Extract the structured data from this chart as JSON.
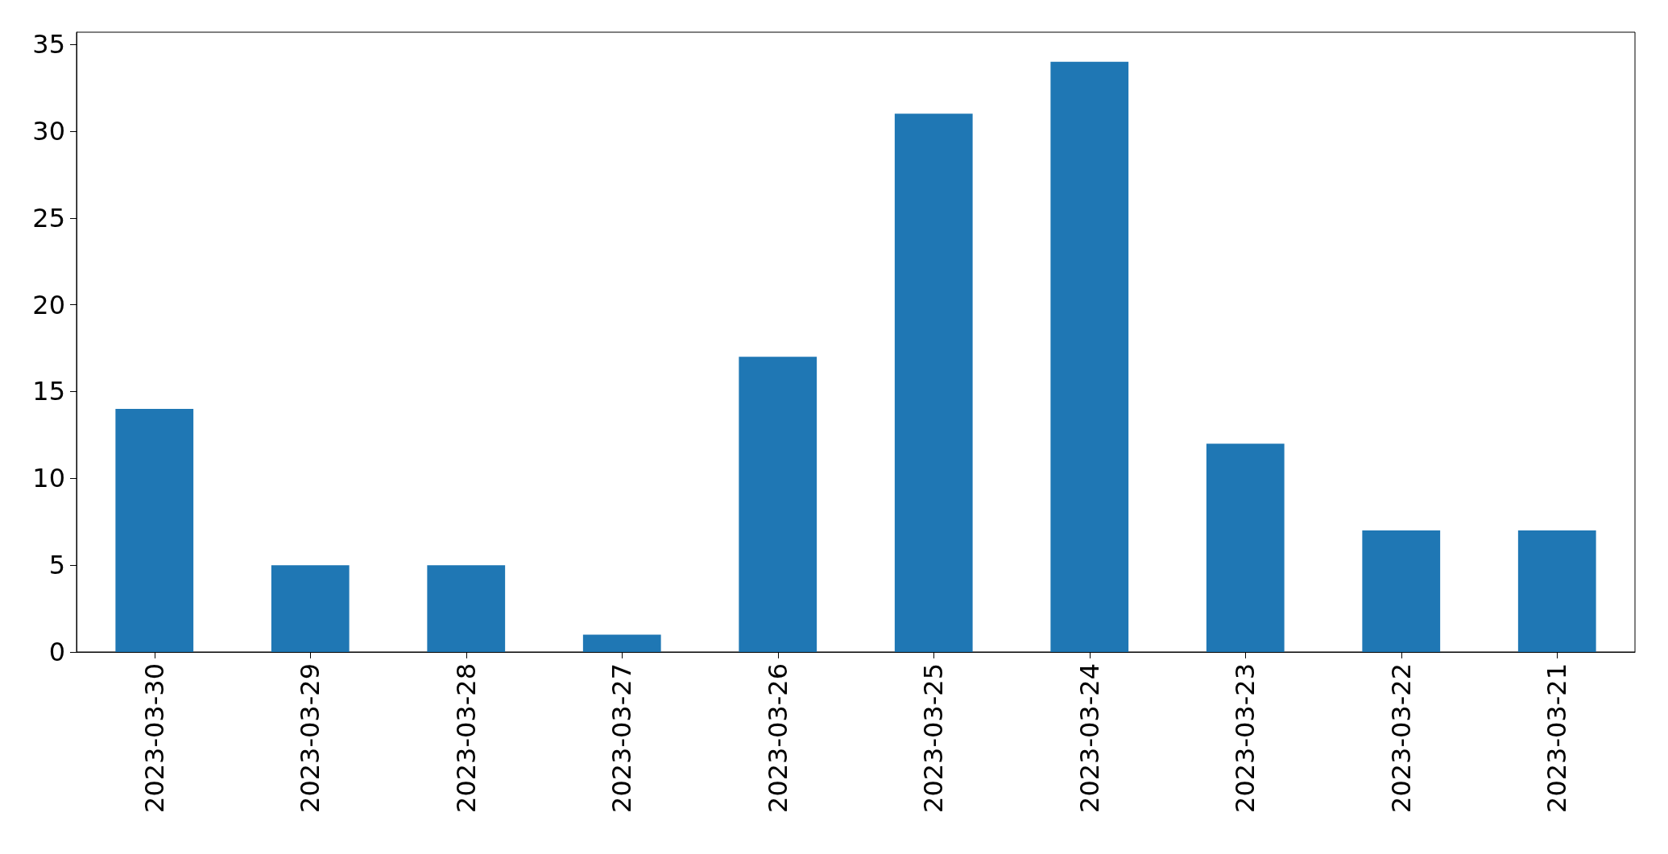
{
  "chart_data": {
    "type": "bar",
    "categories": [
      "2023-03-30",
      "2023-03-29",
      "2023-03-28",
      "2023-03-27",
      "2023-03-26",
      "2023-03-25",
      "2023-03-24",
      "2023-03-23",
      "2023-03-22",
      "2023-03-21"
    ],
    "values": [
      14,
      5,
      5,
      1,
      17,
      31,
      34,
      12,
      7,
      7
    ],
    "color": "#1f77b4",
    "ylim": [
      0,
      35.7
    ],
    "yticks": [
      0,
      5,
      10,
      15,
      20,
      25,
      30,
      35
    ]
  }
}
